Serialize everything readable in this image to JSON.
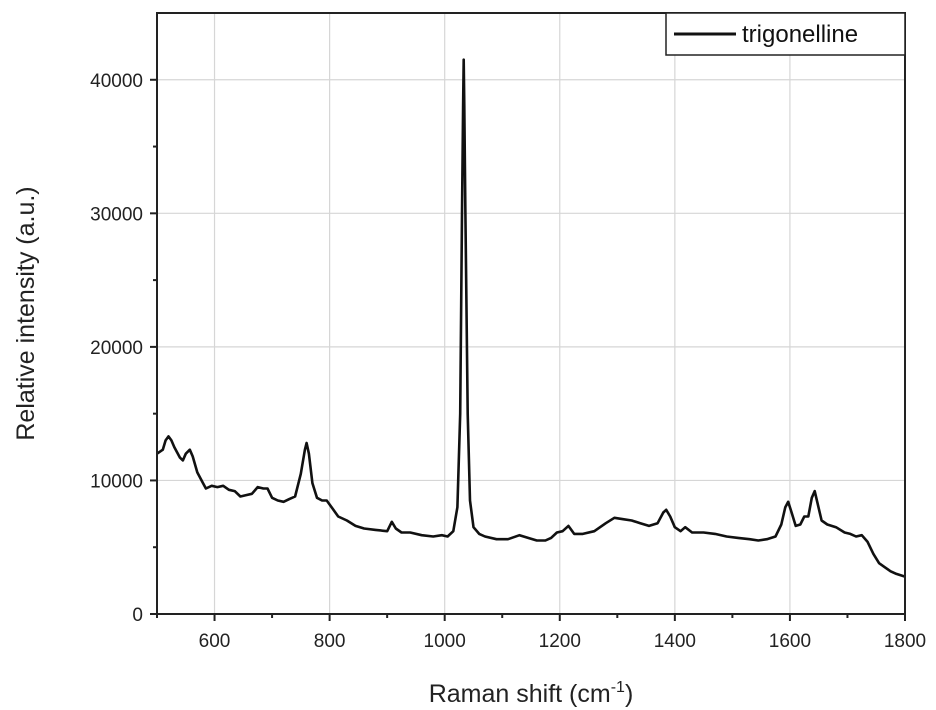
{
  "chart_data": {
    "type": "line",
    "title": "",
    "xlabel": "Raman shift (cm",
    "xlabel_sup": "-1",
    "xlabel_close": ")",
    "ylabel": "Relative intensity (a.u.)",
    "xlim": [
      500,
      1800
    ],
    "ylim": [
      0,
      45000
    ],
    "x_ticks": [
      600,
      800,
      1000,
      1200,
      1400,
      1600,
      1800
    ],
    "y_ticks": [
      0,
      10000,
      20000,
      30000,
      40000
    ],
    "x_tick_labels": [
      "600",
      "800",
      "1000",
      "1200",
      "1400",
      "1600",
      "1800"
    ],
    "y_tick_labels": [
      "0",
      "10000",
      "20000",
      "30000",
      "40000"
    ],
    "grid": true,
    "legend_position": "top-right",
    "colors": {
      "line": "#111111",
      "grid": "#d6d6d6",
      "frame": "#222222"
    },
    "series": [
      {
        "name": "trigonelline",
        "points": [
          [
            500,
            12000
          ],
          [
            510,
            12300
          ],
          [
            515,
            13000
          ],
          [
            520,
            13300
          ],
          [
            525,
            13000
          ],
          [
            530,
            12500
          ],
          [
            540,
            11700
          ],
          [
            545,
            11500
          ],
          [
            550,
            12000
          ],
          [
            557,
            12300
          ],
          [
            562,
            11800
          ],
          [
            570,
            10600
          ],
          [
            580,
            9800
          ],
          [
            585,
            9400
          ],
          [
            595,
            9600
          ],
          [
            605,
            9500
          ],
          [
            615,
            9600
          ],
          [
            625,
            9300
          ],
          [
            635,
            9200
          ],
          [
            645,
            8800
          ],
          [
            655,
            8900
          ],
          [
            665,
            9000
          ],
          [
            675,
            9500
          ],
          [
            685,
            9400
          ],
          [
            692,
            9400
          ],
          [
            700,
            8700
          ],
          [
            710,
            8500
          ],
          [
            720,
            8400
          ],
          [
            730,
            8600
          ],
          [
            740,
            8800
          ],
          [
            750,
            10500
          ],
          [
            757,
            12300
          ],
          [
            760,
            12800
          ],
          [
            764,
            12000
          ],
          [
            770,
            9800
          ],
          [
            778,
            8700
          ],
          [
            787,
            8500
          ],
          [
            795,
            8500
          ],
          [
            805,
            7900
          ],
          [
            815,
            7300
          ],
          [
            830,
            7000
          ],
          [
            845,
            6600
          ],
          [
            860,
            6400
          ],
          [
            880,
            6300
          ],
          [
            900,
            6200
          ],
          [
            908,
            6900
          ],
          [
            915,
            6400
          ],
          [
            925,
            6100
          ],
          [
            940,
            6100
          ],
          [
            960,
            5900
          ],
          [
            980,
            5800
          ],
          [
            995,
            5900
          ],
          [
            1005,
            5800
          ],
          [
            1015,
            6200
          ],
          [
            1022,
            8000
          ],
          [
            1027,
            15000
          ],
          [
            1030,
            30000
          ],
          [
            1032,
            38000
          ],
          [
            1033,
            41500
          ],
          [
            1034,
            38000
          ],
          [
            1036,
            30000
          ],
          [
            1040,
            15000
          ],
          [
            1044,
            8500
          ],
          [
            1050,
            6500
          ],
          [
            1060,
            6000
          ],
          [
            1070,
            5800
          ],
          [
            1090,
            5600
          ],
          [
            1110,
            5600
          ],
          [
            1130,
            5900
          ],
          [
            1145,
            5700
          ],
          [
            1160,
            5500
          ],
          [
            1175,
            5500
          ],
          [
            1185,
            5700
          ],
          [
            1195,
            6100
          ],
          [
            1205,
            6200
          ],
          [
            1215,
            6600
          ],
          [
            1225,
            6000
          ],
          [
            1240,
            6000
          ],
          [
            1260,
            6200
          ],
          [
            1280,
            6800
          ],
          [
            1295,
            7200
          ],
          [
            1310,
            7100
          ],
          [
            1325,
            7000
          ],
          [
            1340,
            6800
          ],
          [
            1355,
            6600
          ],
          [
            1370,
            6800
          ],
          [
            1380,
            7600
          ],
          [
            1385,
            7800
          ],
          [
            1392,
            7300
          ],
          [
            1400,
            6500
          ],
          [
            1410,
            6200
          ],
          [
            1418,
            6500
          ],
          [
            1430,
            6100
          ],
          [
            1450,
            6100
          ],
          [
            1470,
            6000
          ],
          [
            1490,
            5800
          ],
          [
            1510,
            5700
          ],
          [
            1530,
            5600
          ],
          [
            1545,
            5500
          ],
          [
            1560,
            5600
          ],
          [
            1575,
            5800
          ],
          [
            1585,
            6700
          ],
          [
            1592,
            8000
          ],
          [
            1597,
            8400
          ],
          [
            1603,
            7600
          ],
          [
            1610,
            6600
          ],
          [
            1618,
            6700
          ],
          [
            1625,
            7300
          ],
          [
            1632,
            7300
          ],
          [
            1638,
            8700
          ],
          [
            1643,
            9200
          ],
          [
            1648,
            8300
          ],
          [
            1655,
            7000
          ],
          [
            1665,
            6700
          ],
          [
            1680,
            6500
          ],
          [
            1695,
            6100
          ],
          [
            1705,
            6000
          ],
          [
            1715,
            5800
          ],
          [
            1725,
            5900
          ],
          [
            1735,
            5400
          ],
          [
            1745,
            4500
          ],
          [
            1755,
            3800
          ],
          [
            1765,
            3500
          ],
          [
            1775,
            3200
          ],
          [
            1785,
            3000
          ],
          [
            1800,
            2800
          ]
        ]
      }
    ]
  }
}
